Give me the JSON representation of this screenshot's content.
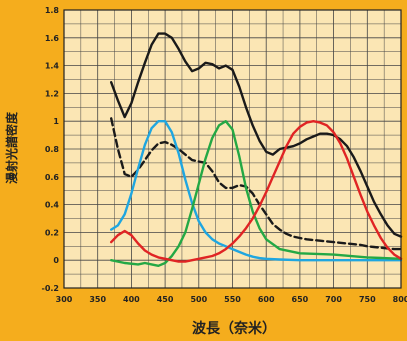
{
  "chart_data": {
    "type": "line",
    "title": "",
    "xlabel": "波長（奈米）",
    "ylabel": "漫射光譜密度",
    "xlim": [
      300,
      800
    ],
    "ylim": [
      -0.2,
      1.8
    ],
    "x_ticks": [
      "300",
      "350",
      "400",
      "450",
      "500",
      "550",
      "600",
      "650",
      "700",
      "750",
      "800"
    ],
    "y_ticks": [
      "-0.2",
      "0",
      "0.2",
      "0.4",
      "0.6",
      "0.8",
      "1",
      "1.2",
      "1.4",
      "1.6",
      "1.8"
    ],
    "grid": true,
    "background_color": "#f5ad1d",
    "plot_color": "#fbe6b4",
    "series": [
      {
        "color": "#1a1a1a",
        "style": "solid",
        "x": [
          370,
          380,
          390,
          400,
          410,
          420,
          430,
          440,
          450,
          460,
          470,
          480,
          490,
          500,
          510,
          520,
          530,
          540,
          550,
          560,
          570,
          580,
          590,
          600,
          610,
          620,
          630,
          640,
          650,
          660,
          670,
          680,
          690,
          700,
          710,
          720,
          730,
          740,
          750,
          760,
          770,
          780,
          790,
          800
        ],
        "y": [
          1.28,
          1.15,
          1.03,
          1.13,
          1.28,
          1.42,
          1.55,
          1.63,
          1.63,
          1.6,
          1.52,
          1.43,
          1.36,
          1.38,
          1.42,
          1.41,
          1.38,
          1.4,
          1.37,
          1.25,
          1.1,
          0.97,
          0.86,
          0.78,
          0.76,
          0.8,
          0.81,
          0.82,
          0.84,
          0.87,
          0.89,
          0.91,
          0.91,
          0.9,
          0.87,
          0.82,
          0.74,
          0.64,
          0.53,
          0.42,
          0.33,
          0.25,
          0.19,
          0.17
        ]
      },
      {
        "color": "#1a1a1a",
        "style": "dashed",
        "x": [
          370,
          380,
          390,
          400,
          410,
          420,
          430,
          440,
          450,
          460,
          470,
          480,
          490,
          500,
          510,
          520,
          530,
          540,
          550,
          560,
          570,
          580,
          590,
          600,
          610,
          620,
          630,
          640,
          650,
          660,
          670,
          680,
          690,
          700,
          710,
          720,
          730,
          740,
          750,
          760,
          770,
          780,
          790,
          800
        ],
        "y": [
          1.02,
          0.8,
          0.62,
          0.6,
          0.65,
          0.72,
          0.79,
          0.84,
          0.85,
          0.83,
          0.8,
          0.76,
          0.72,
          0.71,
          0.7,
          0.64,
          0.56,
          0.52,
          0.52,
          0.54,
          0.53,
          0.48,
          0.4,
          0.33,
          0.26,
          0.22,
          0.19,
          0.17,
          0.16,
          0.15,
          0.145,
          0.14,
          0.135,
          0.13,
          0.125,
          0.12,
          0.115,
          0.11,
          0.1,
          0.095,
          0.09,
          0.085,
          0.08,
          0.08
        ]
      },
      {
        "color": "#1fa6e0",
        "style": "solid",
        "x": [
          370,
          380,
          390,
          400,
          410,
          420,
          430,
          440,
          450,
          460,
          470,
          480,
          490,
          500,
          510,
          520,
          530,
          540,
          550,
          560,
          570,
          580,
          590,
          600,
          620,
          650,
          700,
          750,
          800
        ],
        "y": [
          0.22,
          0.25,
          0.33,
          0.48,
          0.66,
          0.83,
          0.95,
          1.0,
          1.0,
          0.92,
          0.77,
          0.58,
          0.41,
          0.28,
          0.2,
          0.15,
          0.12,
          0.1,
          0.08,
          0.06,
          0.04,
          0.025,
          0.015,
          0.01,
          0.005,
          0.0,
          0.0,
          0.0,
          0.0
        ]
      },
      {
        "color": "#24a845",
        "style": "solid",
        "x": [
          370,
          390,
          410,
          420,
          430,
          440,
          450,
          460,
          470,
          480,
          490,
          500,
          510,
          520,
          530,
          540,
          550,
          560,
          570,
          580,
          590,
          600,
          620,
          650,
          700,
          750,
          800
        ],
        "y": [
          0.0,
          -0.02,
          -0.03,
          -0.02,
          -0.03,
          -0.04,
          -0.02,
          0.03,
          0.1,
          0.2,
          0.37,
          0.55,
          0.73,
          0.88,
          0.97,
          1.0,
          0.94,
          0.75,
          0.52,
          0.35,
          0.23,
          0.15,
          0.08,
          0.05,
          0.04,
          0.02,
          0.01
        ]
      },
      {
        "color": "#e02424",
        "style": "solid",
        "x": [
          370,
          380,
          390,
          400,
          410,
          420,
          430,
          440,
          450,
          460,
          470,
          480,
          490,
          500,
          510,
          520,
          530,
          540,
          550,
          560,
          570,
          580,
          590,
          600,
          610,
          620,
          630,
          640,
          650,
          660,
          670,
          680,
          690,
          700,
          710,
          720,
          730,
          740,
          750,
          760,
          770,
          780,
          790,
          800
        ],
        "y": [
          0.13,
          0.18,
          0.21,
          0.18,
          0.12,
          0.07,
          0.04,
          0.02,
          0.01,
          0.0,
          -0.01,
          -0.01,
          0.0,
          0.01,
          0.02,
          0.03,
          0.05,
          0.08,
          0.12,
          0.17,
          0.23,
          0.3,
          0.39,
          0.49,
          0.6,
          0.71,
          0.82,
          0.91,
          0.96,
          0.99,
          1.0,
          0.99,
          0.97,
          0.92,
          0.84,
          0.73,
          0.6,
          0.47,
          0.35,
          0.25,
          0.16,
          0.09,
          0.04,
          0.01
        ]
      }
    ]
  }
}
